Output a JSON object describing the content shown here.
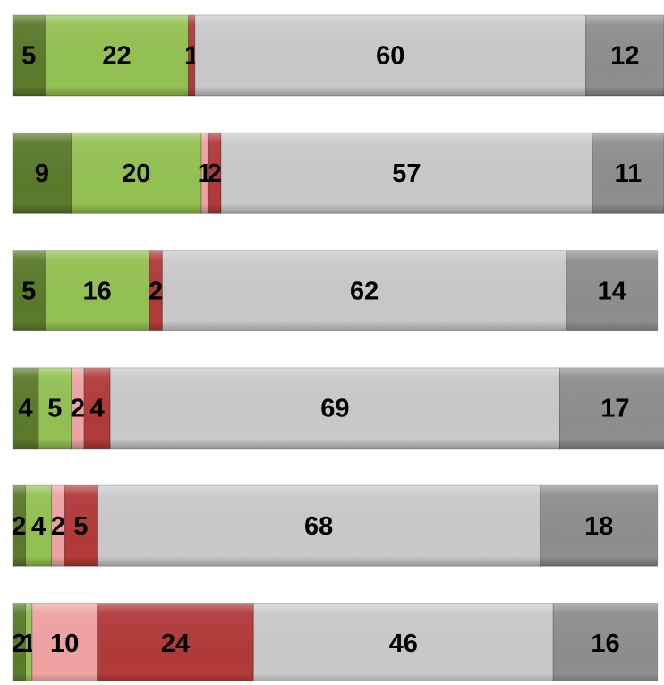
{
  "chart_data": {
    "type": "bar",
    "orientation": "horizontal",
    "stacked": true,
    "categories": [
      null,
      null,
      null,
      null,
      null,
      null
    ],
    "xlim": [
      0,
      100
    ],
    "series": [
      {
        "color": "#5b7a2b",
        "values": [
          5,
          9,
          5,
          4,
          2,
          2
        ]
      },
      {
        "color": "#93c152",
        "values": [
          22,
          20,
          16,
          5,
          4,
          1
        ]
      },
      {
        "color": "#f0a3a3",
        "values": [
          null,
          1,
          null,
          2,
          2,
          10
        ]
      },
      {
        "color": "#b23a3a",
        "values": [
          1,
          2,
          2,
          4,
          5,
          24
        ]
      },
      {
        "color": "#c9c9c9",
        "values": [
          60,
          57,
          62,
          69,
          68,
          46
        ]
      },
      {
        "color": "#8e8e8e",
        "values": [
          12,
          11,
          14,
          17,
          18,
          16
        ]
      }
    ]
  }
}
